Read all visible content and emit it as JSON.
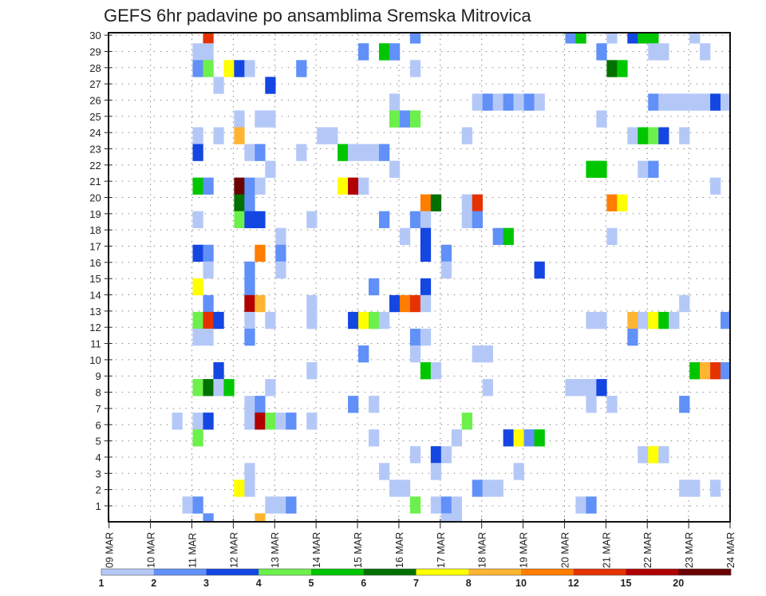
{
  "chart_data": {
    "type": "heatmap",
    "title": "GEFS 6hr padavine po ansamblima Sremska Mitrovica",
    "xlabel": "",
    "ylabel": "",
    "x_step_hours": 6,
    "x_ticks": [
      "09 MAR",
      "10 MAR",
      "11 MAR",
      "12 MAR",
      "13 MAR",
      "14 MAR",
      "15 MAR",
      "16 MAR",
      "17 MAR",
      "18 MAR",
      "19 MAR",
      "20 MAR",
      "21 MAR",
      "22 MAR",
      "23 MAR",
      "24 MAR"
    ],
    "y_ticks": [
      "1",
      "2",
      "3",
      "4",
      "5",
      "6",
      "7",
      "8",
      "9",
      "10",
      "11",
      "12",
      "13",
      "14",
      "15",
      "16",
      "17",
      "18",
      "19",
      "20",
      "21",
      "22",
      "23",
      "24",
      "25",
      "26",
      "27",
      "28",
      "29",
      "30"
    ],
    "ylim": [
      1,
      30
    ],
    "grid": true,
    "legend_position": "bottom",
    "colorbar_labels": [
      "1",
      "2",
      "3",
      "4",
      "5",
      "6",
      "7",
      "8",
      "10",
      "12",
      "15",
      "20"
    ],
    "colors": [
      "#b4c8f8",
      "#6090f8",
      "#1446e2",
      "#6cf04c",
      "#00c600",
      "#007000",
      "#ffff00",
      "#ffb432",
      "#ff7d00",
      "#e63200",
      "#b00000",
      "#6a0000"
    ],
    "cells_format": "[six-hour step index from 09 MAR 00Z, ensemble member, color level index]",
    "cells": [
      [
        9,
        30,
        9
      ],
      [
        29,
        30,
        1
      ],
      [
        44,
        30,
        1
      ],
      [
        45,
        30,
        4
      ],
      [
        48,
        30,
        0
      ],
      [
        50,
        30,
        2
      ],
      [
        51,
        30,
        4
      ],
      [
        52,
        30,
        4
      ],
      [
        56,
        30,
        0
      ],
      [
        8,
        29,
        0
      ],
      [
        9,
        29,
        0
      ],
      [
        24,
        29,
        1
      ],
      [
        26,
        29,
        4
      ],
      [
        27,
        29,
        1
      ],
      [
        47,
        29,
        1
      ],
      [
        52,
        29,
        0
      ],
      [
        53,
        29,
        0
      ],
      [
        57,
        29,
        0
      ],
      [
        8,
        28,
        1
      ],
      [
        9,
        28,
        3
      ],
      [
        11,
        28,
        6
      ],
      [
        12,
        28,
        2
      ],
      [
        13,
        28,
        0
      ],
      [
        18,
        28,
        1
      ],
      [
        29,
        28,
        0
      ],
      [
        48,
        28,
        5
      ],
      [
        49,
        28,
        4
      ],
      [
        10,
        27,
        0
      ],
      [
        15,
        27,
        2
      ],
      [
        27,
        26,
        0
      ],
      [
        35,
        26,
        0
      ],
      [
        36,
        26,
        1
      ],
      [
        37,
        26,
        0
      ],
      [
        38,
        26,
        1
      ],
      [
        39,
        26,
        0
      ],
      [
        40,
        26,
        1
      ],
      [
        41,
        26,
        0
      ],
      [
        52,
        26,
        1
      ],
      [
        53,
        26,
        0
      ],
      [
        54,
        26,
        0
      ],
      [
        55,
        26,
        0
      ],
      [
        56,
        26,
        0
      ],
      [
        57,
        26,
        0
      ],
      [
        58,
        26,
        2
      ],
      [
        59,
        26,
        0
      ],
      [
        12,
        25,
        0
      ],
      [
        14,
        25,
        0
      ],
      [
        15,
        25,
        0
      ],
      [
        27,
        25,
        3
      ],
      [
        28,
        25,
        1
      ],
      [
        29,
        25,
        3
      ],
      [
        47,
        25,
        0
      ],
      [
        8,
        24,
        0
      ],
      [
        10,
        24,
        0
      ],
      [
        12,
        24,
        7
      ],
      [
        20,
        24,
        0
      ],
      [
        21,
        24,
        0
      ],
      [
        34,
        24,
        0
      ],
      [
        50,
        24,
        0
      ],
      [
        51,
        24,
        4
      ],
      [
        52,
        24,
        3
      ],
      [
        53,
        24,
        2
      ],
      [
        55,
        24,
        0
      ],
      [
        8,
        23,
        2
      ],
      [
        13,
        23,
        0
      ],
      [
        14,
        23,
        1
      ],
      [
        18,
        23,
        0
      ],
      [
        22,
        23,
        4
      ],
      [
        23,
        23,
        0
      ],
      [
        24,
        23,
        0
      ],
      [
        25,
        23,
        0
      ],
      [
        26,
        23,
        1
      ],
      [
        15,
        22,
        0
      ],
      [
        27,
        22,
        0
      ],
      [
        46,
        22,
        4
      ],
      [
        47,
        22,
        4
      ],
      [
        51,
        22,
        0
      ],
      [
        52,
        22,
        1
      ],
      [
        8,
        21,
        4
      ],
      [
        9,
        21,
        1
      ],
      [
        12,
        21,
        11
      ],
      [
        13,
        21,
        1
      ],
      [
        14,
        21,
        0
      ],
      [
        22,
        21,
        6
      ],
      [
        23,
        21,
        10
      ],
      [
        24,
        21,
        0
      ],
      [
        58,
        21,
        0
      ],
      [
        12,
        20,
        5
      ],
      [
        13,
        20,
        1
      ],
      [
        30,
        20,
        8
      ],
      [
        31,
        20,
        5
      ],
      [
        34,
        20,
        0
      ],
      [
        35,
        20,
        9
      ],
      [
        48,
        20,
        8
      ],
      [
        49,
        20,
        6
      ],
      [
        8,
        19,
        0
      ],
      [
        12,
        19,
        3
      ],
      [
        13,
        19,
        2
      ],
      [
        14,
        19,
        2
      ],
      [
        19,
        19,
        0
      ],
      [
        26,
        19,
        1
      ],
      [
        29,
        19,
        1
      ],
      [
        30,
        19,
        0
      ],
      [
        34,
        19,
        0
      ],
      [
        35,
        19,
        1
      ],
      [
        16,
        18,
        0
      ],
      [
        28,
        18,
        0
      ],
      [
        30,
        18,
        2
      ],
      [
        37,
        18,
        1
      ],
      [
        38,
        18,
        4
      ],
      [
        48,
        18,
        0
      ],
      [
        8,
        17,
        2
      ],
      [
        9,
        17,
        1
      ],
      [
        14,
        17,
        8
      ],
      [
        16,
        17,
        1
      ],
      [
        30,
        17,
        2
      ],
      [
        32,
        17,
        1
      ],
      [
        9,
        16,
        0
      ],
      [
        13,
        16,
        1
      ],
      [
        16,
        16,
        0
      ],
      [
        32,
        16,
        0
      ],
      [
        41,
        16,
        2
      ],
      [
        8,
        15,
        6
      ],
      [
        13,
        15,
        1
      ],
      [
        25,
        15,
        1
      ],
      [
        30,
        15,
        2
      ],
      [
        9,
        14,
        1
      ],
      [
        13,
        14,
        10
      ],
      [
        14,
        14,
        7
      ],
      [
        19,
        14,
        0
      ],
      [
        27,
        14,
        2
      ],
      [
        28,
        14,
        8
      ],
      [
        29,
        14,
        9
      ],
      [
        30,
        14,
        0
      ],
      [
        55,
        14,
        0
      ],
      [
        8,
        13,
        3
      ],
      [
        9,
        13,
        9
      ],
      [
        10,
        13,
        2
      ],
      [
        13,
        13,
        0
      ],
      [
        15,
        13,
        0
      ],
      [
        19,
        13,
        0
      ],
      [
        23,
        13,
        2
      ],
      [
        24,
        13,
        6
      ],
      [
        25,
        13,
        3
      ],
      [
        26,
        13,
        0
      ],
      [
        46,
        13,
        0
      ],
      [
        47,
        13,
        0
      ],
      [
        50,
        13,
        7
      ],
      [
        51,
        13,
        0
      ],
      [
        52,
        13,
        6
      ],
      [
        53,
        13,
        4
      ],
      [
        54,
        13,
        0
      ],
      [
        59,
        13,
        1
      ],
      [
        8,
        12,
        0
      ],
      [
        9,
        12,
        0
      ],
      [
        13,
        12,
        1
      ],
      [
        29,
        12,
        1
      ],
      [
        30,
        12,
        0
      ],
      [
        50,
        12,
        1
      ],
      [
        24,
        11,
        1
      ],
      [
        29,
        11,
        0
      ],
      [
        35,
        11,
        0
      ],
      [
        36,
        11,
        0
      ],
      [
        10,
        10,
        2
      ],
      [
        19,
        10,
        0
      ],
      [
        30,
        10,
        4
      ],
      [
        31,
        10,
        0
      ],
      [
        56,
        10,
        4
      ],
      [
        57,
        10,
        7
      ],
      [
        58,
        10,
        9
      ],
      [
        59,
        10,
        1
      ],
      [
        8,
        9,
        3
      ],
      [
        9,
        9,
        5
      ],
      [
        10,
        9,
        0
      ],
      [
        11,
        9,
        4
      ],
      [
        15,
        9,
        0
      ],
      [
        36,
        9,
        0
      ],
      [
        44,
        9,
        0
      ],
      [
        45,
        9,
        0
      ],
      [
        46,
        9,
        0
      ],
      [
        47,
        9,
        2
      ],
      [
        13,
        8,
        0
      ],
      [
        14,
        8,
        1
      ],
      [
        23,
        8,
        1
      ],
      [
        25,
        8,
        0
      ],
      [
        46,
        8,
        0
      ],
      [
        48,
        8,
        0
      ],
      [
        55,
        8,
        1
      ],
      [
        6,
        7,
        0
      ],
      [
        8,
        7,
        0
      ],
      [
        9,
        7,
        2
      ],
      [
        13,
        7,
        0
      ],
      [
        14,
        7,
        10
      ],
      [
        15,
        7,
        3
      ],
      [
        16,
        7,
        0
      ],
      [
        17,
        7,
        1
      ],
      [
        19,
        7,
        0
      ],
      [
        34,
        7,
        3
      ],
      [
        8,
        6,
        3
      ],
      [
        25,
        6,
        0
      ],
      [
        33,
        6,
        0
      ],
      [
        38,
        6,
        2
      ],
      [
        39,
        6,
        6
      ],
      [
        40,
        6,
        1
      ],
      [
        41,
        6,
        4
      ],
      [
        29,
        5,
        0
      ],
      [
        31,
        5,
        2
      ],
      [
        32,
        5,
        0
      ],
      [
        51,
        5,
        0
      ],
      [
        52,
        5,
        6
      ],
      [
        53,
        5,
        0
      ],
      [
        13,
        4,
        0
      ],
      [
        26,
        4,
        0
      ],
      [
        31,
        4,
        0
      ],
      [
        39,
        4,
        0
      ],
      [
        12,
        3,
        6
      ],
      [
        13,
        3,
        0
      ],
      [
        27,
        3,
        0
      ],
      [
        28,
        3,
        0
      ],
      [
        35,
        3,
        1
      ],
      [
        36,
        3,
        0
      ],
      [
        37,
        3,
        0
      ],
      [
        55,
        3,
        0
      ],
      [
        56,
        3,
        0
      ],
      [
        58,
        3,
        0
      ],
      [
        7,
        2,
        0
      ],
      [
        8,
        2,
        1
      ],
      [
        15,
        2,
        0
      ],
      [
        16,
        2,
        0
      ],
      [
        17,
        2,
        1
      ],
      [
        29,
        2,
        3
      ],
      [
        31,
        2,
        0
      ],
      [
        32,
        2,
        1
      ],
      [
        33,
        2,
        0
      ],
      [
        45,
        2,
        0
      ],
      [
        46,
        2,
        1
      ],
      [
        9,
        1,
        1
      ],
      [
        14,
        1,
        7
      ],
      [
        32,
        1,
        0
      ],
      [
        33,
        1,
        0
      ]
    ]
  }
}
